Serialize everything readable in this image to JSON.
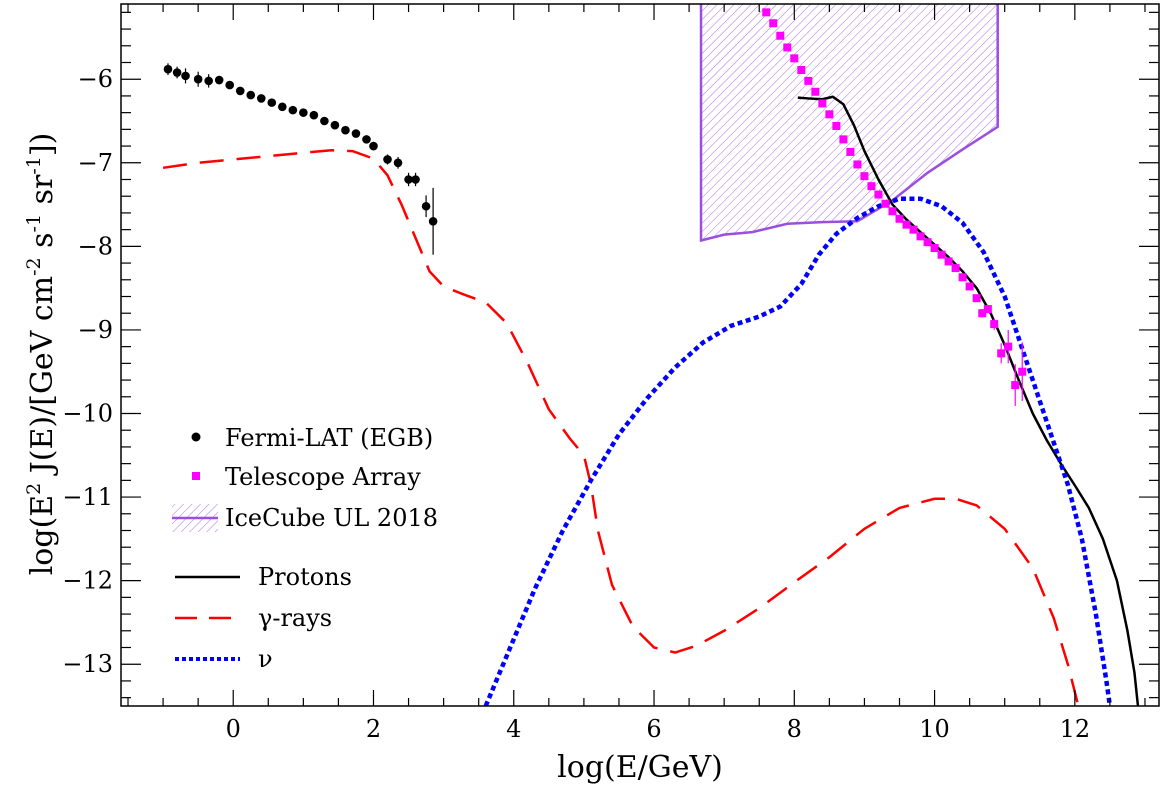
{
  "chart_data": {
    "type": "line",
    "xlabel": "log(E/GeV)",
    "ylabel": "log(E² J(E)/[GeV cm⁻² s⁻¹ sr⁻¹])",
    "ylabel_parts": {
      "a": "log(E",
      "b": "2",
      "c": " J(E)/[GeV cm",
      "d": "-2",
      "e": " s",
      "f": "-1",
      "g": " sr",
      "h": "-1",
      "i": "])"
    },
    "xlim": [
      -1.6,
      13.2
    ],
    "ylim": [
      -13.5,
      -5.1
    ],
    "x_ticks": [
      0,
      2,
      4,
      6,
      8,
      10,
      12
    ],
    "x_tick_labels": [
      "0",
      "2",
      "4",
      "6",
      "8",
      "10",
      "12"
    ],
    "y_ticks": [
      -13,
      -12,
      -11,
      -10,
      -9,
      -8,
      -7,
      -6
    ],
    "y_tick_labels": [
      "−13",
      "−12",
      "−11",
      "−10",
      "−9",
      "−8",
      "−7",
      "−6"
    ],
    "grid": false,
    "legend_position": "left",
    "legend": [
      {
        "label": "Fermi-LAT (EGB)",
        "symbol": "circle",
        "color": "#000000"
      },
      {
        "label": "Telescope Array",
        "symbol": "square",
        "color": "#ff00ff"
      },
      {
        "label": "IceCube UL 2018",
        "symbol": "hatched-area",
        "color": "#9b4ee0"
      },
      {
        "label": "Protons",
        "symbol": "solid-line",
        "color": "#000000"
      },
      {
        "label": "γ-rays",
        "symbol": "dashed-line",
        "color": "#ff0000"
      },
      {
        "label": "ν",
        "symbol": "dotted-line",
        "color": "#0000ff"
      }
    ],
    "fermi_lat": [
      {
        "x": -0.93,
        "y": -5.88,
        "err": 0.07
      },
      {
        "x": -0.8,
        "y": -5.92,
        "err": 0.07
      },
      {
        "x": -0.68,
        "y": -5.96,
        "err": 0.09
      },
      {
        "x": -0.5,
        "y": -6.0,
        "err": 0.09
      },
      {
        "x": -0.35,
        "y": -6.02,
        "err": 0.08
      },
      {
        "x": -0.2,
        "y": -6.01,
        "err": 0.05
      },
      {
        "x": -0.05,
        "y": -6.07,
        "err": 0.04
      },
      {
        "x": 0.1,
        "y": -6.14,
        "err": 0.03
      },
      {
        "x": 0.25,
        "y": -6.19,
        "err": 0.03
      },
      {
        "x": 0.4,
        "y": -6.23,
        "err": 0.03
      },
      {
        "x": 0.55,
        "y": -6.28,
        "err": 0.03
      },
      {
        "x": 0.7,
        "y": -6.33,
        "err": 0.03
      },
      {
        "x": 0.85,
        "y": -6.37,
        "err": 0.03
      },
      {
        "x": 1.0,
        "y": -6.4,
        "err": 0.03
      },
      {
        "x": 1.15,
        "y": -6.43,
        "err": 0.03
      },
      {
        "x": 1.3,
        "y": -6.5,
        "err": 0.03
      },
      {
        "x": 1.45,
        "y": -6.55,
        "err": 0.03
      },
      {
        "x": 1.6,
        "y": -6.61,
        "err": 0.03
      },
      {
        "x": 1.75,
        "y": -6.65,
        "err": 0.03
      },
      {
        "x": 1.9,
        "y": -6.72,
        "err": 0.04
      },
      {
        "x": 2.0,
        "y": -6.8,
        "err": 0.05
      },
      {
        "x": 2.2,
        "y": -6.96,
        "err": 0.06
      },
      {
        "x": 2.35,
        "y": -7.0,
        "err": 0.07
      },
      {
        "x": 2.5,
        "y": -7.2,
        "err": 0.08
      },
      {
        "x": 2.6,
        "y": -7.2,
        "err": 0.08
      },
      {
        "x": 2.75,
        "y": -7.52,
        "err": 0.13
      },
      {
        "x": 2.85,
        "y": -7.7,
        "err": 0.4
      }
    ],
    "telescope_array": [
      {
        "x": 7.6,
        "y": -5.2,
        "err": 0
      },
      {
        "x": 7.7,
        "y": -5.33,
        "err": 0
      },
      {
        "x": 7.8,
        "y": -5.48,
        "err": 0
      },
      {
        "x": 7.9,
        "y": -5.62,
        "err": 0
      },
      {
        "x": 8.0,
        "y": -5.75,
        "err": 0
      },
      {
        "x": 8.1,
        "y": -5.89,
        "err": 0
      },
      {
        "x": 8.2,
        "y": -6.02,
        "err": 0
      },
      {
        "x": 8.3,
        "y": -6.15,
        "err": 0
      },
      {
        "x": 8.4,
        "y": -6.29,
        "err": 0
      },
      {
        "x": 8.5,
        "y": -6.42,
        "err": 0
      },
      {
        "x": 8.6,
        "y": -6.56,
        "err": 0
      },
      {
        "x": 8.7,
        "y": -6.72,
        "err": 0
      },
      {
        "x": 8.8,
        "y": -6.87,
        "err": 0
      },
      {
        "x": 8.9,
        "y": -7.02,
        "err": 0
      },
      {
        "x": 9.0,
        "y": -7.16,
        "err": 0
      },
      {
        "x": 9.1,
        "y": -7.28,
        "err": 0
      },
      {
        "x": 9.2,
        "y": -7.38,
        "err": 0
      },
      {
        "x": 9.3,
        "y": -7.49,
        "err": 0
      },
      {
        "x": 9.4,
        "y": -7.58,
        "err": 0
      },
      {
        "x": 9.5,
        "y": -7.67,
        "err": 0
      },
      {
        "x": 9.6,
        "y": -7.74,
        "err": 0
      },
      {
        "x": 9.7,
        "y": -7.8,
        "err": 0
      },
      {
        "x": 9.8,
        "y": -7.88,
        "err": 0
      },
      {
        "x": 9.9,
        "y": -7.95,
        "err": 0
      },
      {
        "x": 10.0,
        "y": -8.02,
        "err": 0
      },
      {
        "x": 10.1,
        "y": -8.1,
        "err": 0
      },
      {
        "x": 10.2,
        "y": -8.18,
        "err": 0
      },
      {
        "x": 10.3,
        "y": -8.26,
        "err": 0
      },
      {
        "x": 10.4,
        "y": -8.37,
        "err": 0
      },
      {
        "x": 10.5,
        "y": -8.48,
        "err": 0
      },
      {
        "x": 10.6,
        "y": -8.62,
        "err": 0.03
      },
      {
        "x": 10.68,
        "y": -8.8,
        "err": 0.05
      },
      {
        "x": 10.76,
        "y": -8.75,
        "err": 0.05
      },
      {
        "x": 10.85,
        "y": -8.93,
        "err": 0.07
      },
      {
        "x": 10.95,
        "y": -9.28,
        "err": 0.12
      },
      {
        "x": 11.05,
        "y": -9.2,
        "err": 0.2
      },
      {
        "x": 11.15,
        "y": -9.66,
        "err": 0.25
      },
      {
        "x": 11.25,
        "y": -9.5,
        "err": 0.35
      }
    ],
    "icecube_ul_2018": {
      "top": [
        [
          6.67,
          -5.1
        ],
        [
          10.9,
          -5.1
        ]
      ],
      "right_edge": [
        [
          10.9,
          -5.1
        ],
        [
          10.9,
          -6.57
        ]
      ],
      "lower": [
        [
          6.67,
          -7.93
        ],
        [
          7.0,
          -7.86
        ],
        [
          7.4,
          -7.83
        ],
        [
          7.9,
          -7.73
        ],
        [
          8.4,
          -7.71
        ],
        [
          8.9,
          -7.7
        ],
        [
          9.4,
          -7.45
        ],
        [
          9.9,
          -7.12
        ],
        [
          10.4,
          -6.84
        ],
        [
          10.9,
          -6.57
        ]
      ]
    },
    "series": [
      {
        "name": "Protons",
        "color": "#000000",
        "style": "solid",
        "points": [
          [
            8.05,
            -6.22
          ],
          [
            8.2,
            -6.23
          ],
          [
            8.4,
            -6.24
          ],
          [
            8.55,
            -6.21
          ],
          [
            8.7,
            -6.3
          ],
          [
            8.85,
            -6.55
          ],
          [
            9.0,
            -6.86
          ],
          [
            9.2,
            -7.2
          ],
          [
            9.4,
            -7.5
          ],
          [
            9.6,
            -7.68
          ],
          [
            9.8,
            -7.83
          ],
          [
            10.0,
            -7.98
          ],
          [
            10.2,
            -8.13
          ],
          [
            10.4,
            -8.3
          ],
          [
            10.6,
            -8.5
          ],
          [
            10.8,
            -8.8
          ],
          [
            11.0,
            -9.18
          ],
          [
            11.2,
            -9.6
          ],
          [
            11.4,
            -10.0
          ],
          [
            11.6,
            -10.32
          ],
          [
            11.8,
            -10.6
          ],
          [
            12.0,
            -10.86
          ],
          [
            12.2,
            -11.13
          ],
          [
            12.4,
            -11.5
          ],
          [
            12.6,
            -12.0
          ],
          [
            12.75,
            -12.6
          ],
          [
            12.85,
            -13.1
          ],
          [
            12.9,
            -13.5
          ]
        ]
      },
      {
        "name": "γ-rays",
        "color": "#ff0000",
        "style": "dashed",
        "points": [
          [
            -1.0,
            -7.06
          ],
          [
            -0.5,
            -7.0
          ],
          [
            0.0,
            -6.96
          ],
          [
            0.5,
            -6.92
          ],
          [
            1.0,
            -6.88
          ],
          [
            1.4,
            -6.85
          ],
          [
            1.7,
            -6.86
          ],
          [
            2.0,
            -6.95
          ],
          [
            2.2,
            -7.15
          ],
          [
            2.4,
            -7.5
          ],
          [
            2.6,
            -7.9
          ],
          [
            2.8,
            -8.3
          ],
          [
            3.0,
            -8.48
          ],
          [
            3.3,
            -8.58
          ],
          [
            3.6,
            -8.67
          ],
          [
            3.9,
            -8.92
          ],
          [
            4.2,
            -9.4
          ],
          [
            4.5,
            -9.95
          ],
          [
            4.8,
            -10.3
          ],
          [
            5.0,
            -10.5
          ],
          [
            5.1,
            -10.85
          ],
          [
            5.2,
            -11.4
          ],
          [
            5.4,
            -12.05
          ],
          [
            5.7,
            -12.55
          ],
          [
            6.0,
            -12.8
          ],
          [
            6.3,
            -12.86
          ],
          [
            6.6,
            -12.78
          ],
          [
            7.0,
            -12.6
          ],
          [
            7.5,
            -12.33
          ],
          [
            8.0,
            -12.02
          ],
          [
            8.5,
            -11.72
          ],
          [
            9.0,
            -11.38
          ],
          [
            9.5,
            -11.13
          ],
          [
            10.0,
            -11.02
          ],
          [
            10.3,
            -11.02
          ],
          [
            10.6,
            -11.1
          ],
          [
            11.0,
            -11.38
          ],
          [
            11.4,
            -11.85
          ],
          [
            11.7,
            -12.45
          ],
          [
            11.9,
            -13.0
          ],
          [
            12.05,
            -13.5
          ]
        ]
      },
      {
        "name": "ν",
        "color": "#0000ff",
        "style": "dotted",
        "points": [
          [
            3.6,
            -13.5
          ],
          [
            3.9,
            -12.9
          ],
          [
            4.3,
            -12.1
          ],
          [
            4.7,
            -11.4
          ],
          [
            5.1,
            -10.8
          ],
          [
            5.5,
            -10.25
          ],
          [
            5.9,
            -9.82
          ],
          [
            6.3,
            -9.45
          ],
          [
            6.7,
            -9.15
          ],
          [
            7.1,
            -8.95
          ],
          [
            7.5,
            -8.84
          ],
          [
            7.8,
            -8.72
          ],
          [
            8.1,
            -8.45
          ],
          [
            8.35,
            -8.1
          ],
          [
            8.6,
            -7.85
          ],
          [
            8.9,
            -7.66
          ],
          [
            9.2,
            -7.52
          ],
          [
            9.5,
            -7.43
          ],
          [
            9.8,
            -7.43
          ],
          [
            10.1,
            -7.52
          ],
          [
            10.4,
            -7.72
          ],
          [
            10.7,
            -8.07
          ],
          [
            11.0,
            -8.6
          ],
          [
            11.3,
            -9.35
          ],
          [
            11.6,
            -10.1
          ],
          [
            11.9,
            -10.85
          ],
          [
            12.1,
            -11.5
          ],
          [
            12.3,
            -12.4
          ],
          [
            12.45,
            -13.2
          ],
          [
            12.5,
            -13.5
          ]
        ]
      }
    ]
  }
}
